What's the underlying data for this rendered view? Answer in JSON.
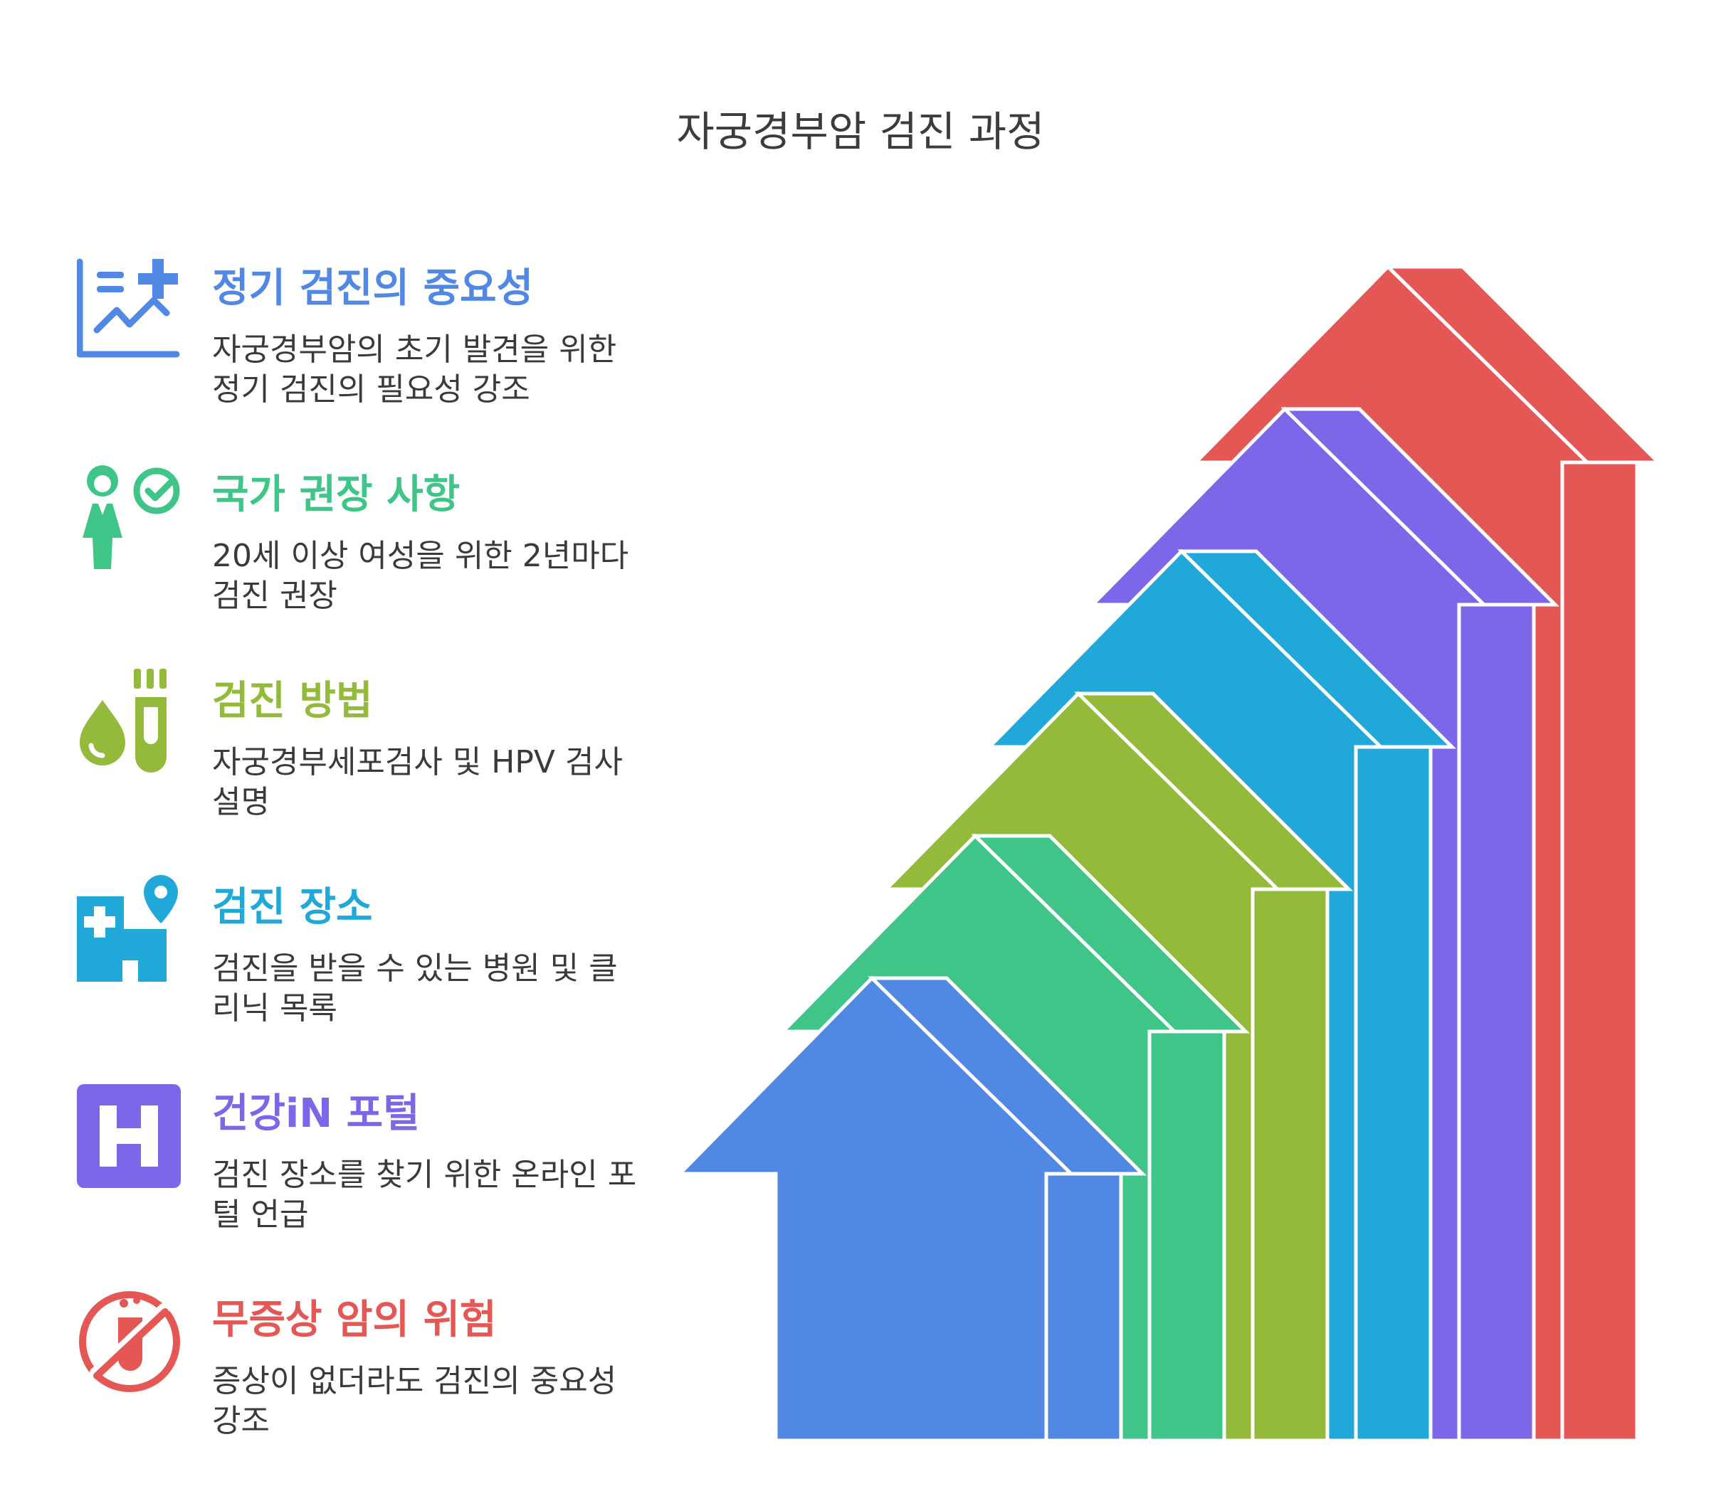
{
  "title": "자궁경부암 검진 과정",
  "colors": {
    "blue": "#5088E3",
    "green": "#3EC587",
    "olive": "#93BA3B",
    "cyan": "#20A9D8",
    "purple": "#7E66E8",
    "red": "#E45755"
  },
  "items": [
    {
      "heading": "정기 검진의 중요성",
      "description": "자궁경부암의 초기 발견을 위한 정기 검진의 필요성 강조",
      "color": "#5088E3",
      "icon": "health-chart-icon"
    },
    {
      "heading": "국가 권장 사항",
      "description": "20세 이상 여성을 위한 2년마다 검진 권장",
      "color": "#3EC587",
      "icon": "woman-check-icon"
    },
    {
      "heading": "검진 방법",
      "description": "자궁경부세포검사 및 HPV 검사 설명",
      "color": "#93BA3B",
      "icon": "test-tube-drop-icon"
    },
    {
      "heading": "검진 장소",
      "description": "검진을 받을 수 있는 병원 및 클리닉 목록",
      "color": "#20A9D8",
      "icon": "hospital-location-icon"
    },
    {
      "heading": "건강iN 포털",
      "description": "검진 장소를 찾기 위한 온라인 포털 언급",
      "color": "#7E66E8",
      "icon": "hospital-h-icon"
    },
    {
      "heading": "무증상 암의 위험",
      "description": "증상이 없더라도 검진의 중요성 강조",
      "color": "#E45755",
      "icon": "no-test-tube-icon"
    }
  ]
}
